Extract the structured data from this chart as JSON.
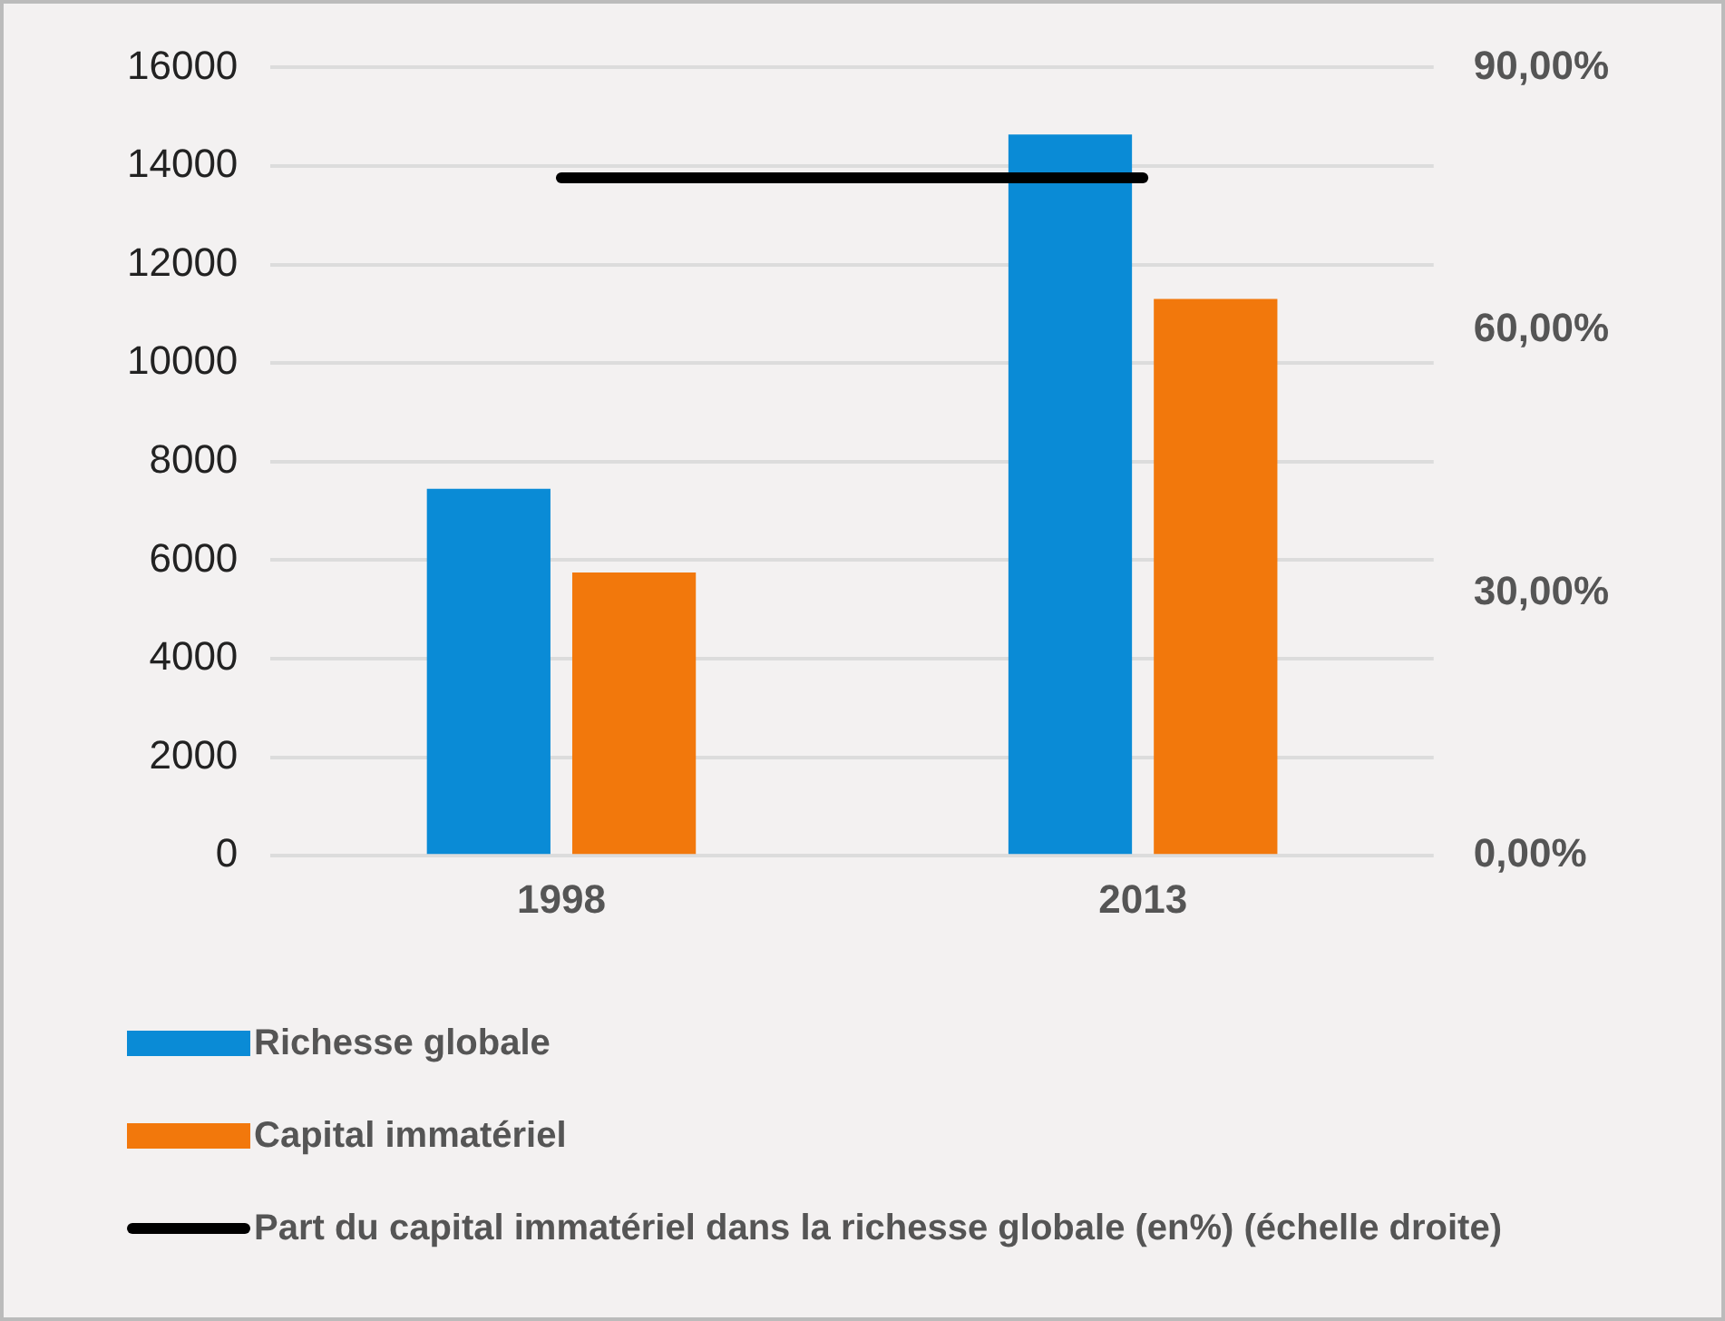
{
  "chart_data": {
    "type": "bar",
    "categories": [
      "1998",
      "2013"
    ],
    "series": [
      {
        "name": "Richesse globale",
        "color": "#0a8bd6",
        "values": [
          7450,
          14640
        ]
      },
      {
        "name": "Capital immatériel",
        "color": "#f2780c",
        "values": [
          5750,
          11300
        ]
      },
      {
        "name": "Part du capital immatériel dans la richesse globale (en%) (échelle droite)",
        "color": "#000000",
        "type": "line",
        "axis": "y2",
        "values": [
          77.4,
          77.4
        ]
      }
    ],
    "ylim": [
      0,
      16000
    ],
    "yticks": [
      0,
      2000,
      4000,
      6000,
      8000,
      10000,
      12000,
      14000,
      16000
    ],
    "y2lim": [
      0,
      90
    ],
    "y2ticks": [
      {
        "value": 0,
        "label": "0,00%"
      },
      {
        "value": 30,
        "label": "30,00%"
      },
      {
        "value": 60,
        "label": "60,00%"
      },
      {
        "value": 90,
        "label": "90,00%"
      }
    ],
    "grid": "y",
    "legend": "bottom",
    "marker": "none"
  }
}
